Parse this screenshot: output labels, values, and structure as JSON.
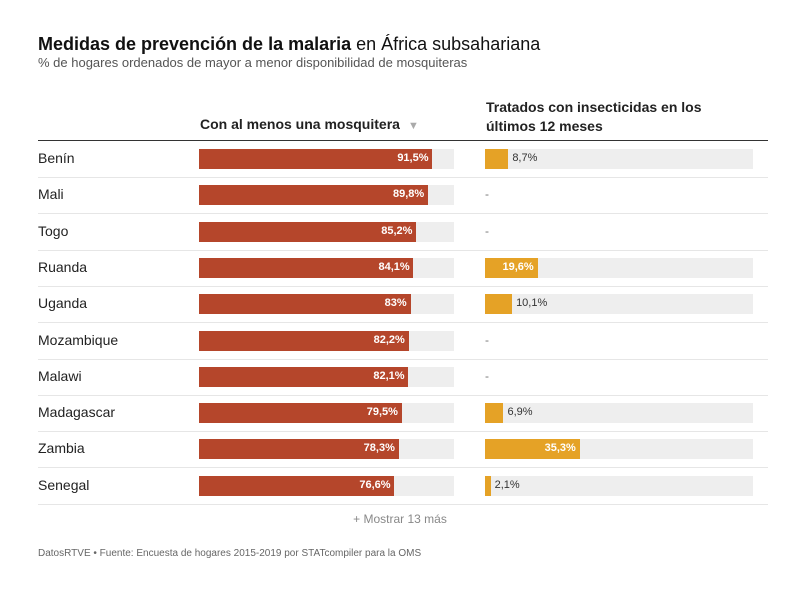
{
  "header": {
    "title_bold": "Medidas de prevención de la malaria",
    "title_rest": " en África subsahariana",
    "subtitle": "% de hogares ordenados de mayor a menor disponibilidad de mosquiteras"
  },
  "columns": {
    "col1": "Con al menos una mosquitera",
    "col1_sort": "▼",
    "col2": "Tratados con insecticidas en los últimos 12 meses"
  },
  "colors": {
    "bar1": "#b5462b",
    "bar2": "#e5a226",
    "track": "#eeeeee"
  },
  "chart_data": {
    "type": "bar",
    "categories": [
      "Benín",
      "Mali",
      "Togo",
      "Ruanda",
      "Uganda",
      "Mozambique",
      "Malawi",
      "Madagascar",
      "Zambia",
      "Senegal"
    ],
    "series": [
      {
        "name": "Con al menos una mosquitera",
        "values": [
          91.5,
          89.8,
          85.2,
          84.1,
          83,
          82.2,
          82.1,
          79.5,
          78.3,
          76.6
        ],
        "labels": [
          "91,5%",
          "89,8%",
          "85,2%",
          "84,1%",
          "83%",
          "82,2%",
          "82,1%",
          "79,5%",
          "78,3%",
          "76,6%"
        ]
      },
      {
        "name": "Tratados con insecticidas en los últimos 12 meses",
        "values": [
          8.7,
          null,
          null,
          19.6,
          10.1,
          null,
          null,
          6.9,
          35.3,
          2.1
        ],
        "labels": [
          "8,7%",
          "-",
          "-",
          "19,6%",
          "10,1%",
          "-",
          "-",
          "6,9%",
          "35,3%",
          "2,1%"
        ]
      }
    ],
    "ylim": [
      0,
      100
    ]
  },
  "footer": {
    "show_more": "+ Mostrar 13 más",
    "source": "DatosRTVE • Fuente: Encuesta de hogares 2015-2019 por STATcompiler para la OMS"
  }
}
